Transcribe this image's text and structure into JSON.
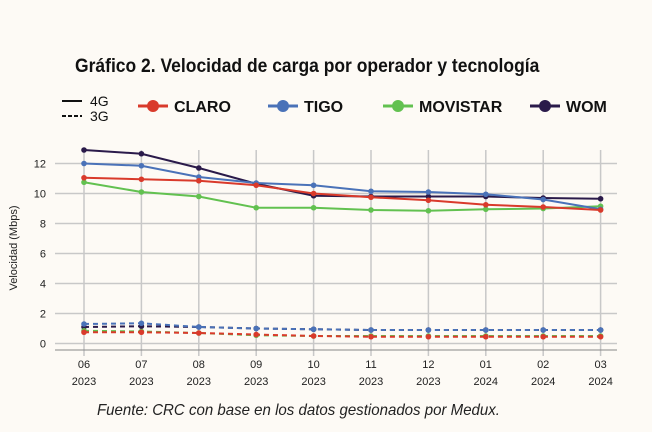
{
  "title": "Gráfico 2. Velocidad de carga por operador y tecnología",
  "source_label": "Fuente:",
  "source_text": " CRC con base en los datos gestionados por Medux.",
  "chart_data": {
    "type": "line",
    "title": "Gráfico 2. Velocidad de carga por operador y tecnología",
    "ylabel": "Velocidad (Mbps)",
    "xlabel": "",
    "ylim": [
      0,
      13
    ],
    "yticks": [
      0,
      2,
      4,
      6,
      8,
      10,
      12
    ],
    "grid": true,
    "legend_position": "top",
    "categories": [
      {
        "month": "06",
        "year": "2023"
      },
      {
        "month": "07",
        "year": "2023"
      },
      {
        "month": "08",
        "year": "2023"
      },
      {
        "month": "09",
        "year": "2023"
      },
      {
        "month": "10",
        "year": "2023"
      },
      {
        "month": "11",
        "year": "2023"
      },
      {
        "month": "12",
        "year": "2023"
      },
      {
        "month": "01",
        "year": "2024"
      },
      {
        "month": "02",
        "year": "2024"
      },
      {
        "month": "03",
        "year": "2024"
      }
    ],
    "technology_legend": [
      {
        "label": "4G",
        "style": "solid"
      },
      {
        "label": "3G",
        "style": "dashed"
      }
    ],
    "operators": [
      {
        "name": "CLARO",
        "color": "#d93a2b"
      },
      {
        "name": "TIGO",
        "color": "#4a72b8"
      },
      {
        "name": "MOVISTAR",
        "color": "#62c150"
      },
      {
        "name": "WOM",
        "color": "#2a1a4a"
      }
    ],
    "series": [
      {
        "operator": "CLARO",
        "tech": "4G",
        "values": [
          11.05,
          10.95,
          10.85,
          10.55,
          10.0,
          9.75,
          9.55,
          9.25,
          9.1,
          8.9
        ]
      },
      {
        "operator": "TIGO",
        "tech": "4G",
        "values": [
          12.0,
          11.85,
          11.1,
          10.7,
          10.55,
          10.15,
          10.1,
          9.95,
          9.6,
          8.95
        ]
      },
      {
        "operator": "MOVISTAR",
        "tech": "4G",
        "values": [
          10.75,
          10.1,
          9.8,
          9.05,
          9.05,
          8.9,
          8.85,
          8.95,
          9.0,
          9.15
        ]
      },
      {
        "operator": "WOM",
        "tech": "4G",
        "values": [
          12.9,
          12.65,
          11.7,
          10.65,
          9.85,
          9.8,
          9.8,
          9.8,
          9.7,
          9.65
        ]
      },
      {
        "operator": "CLARO",
        "tech": "3G",
        "values": [
          0.75,
          0.75,
          0.7,
          0.6,
          0.5,
          0.45,
          0.45,
          0.45,
          0.45,
          0.45
        ]
      },
      {
        "operator": "TIGO",
        "tech": "3G",
        "values": [
          1.3,
          1.35,
          1.1,
          1.0,
          0.95,
          0.9,
          0.9,
          0.9,
          0.9,
          0.9
        ]
      },
      {
        "operator": "MOVISTAR",
        "tech": "3G",
        "values": [
          0.85,
          0.8,
          0.7,
          0.55,
          0.5,
          0.5,
          0.5,
          0.5,
          0.5,
          0.5
        ]
      },
      {
        "operator": "WOM",
        "tech": "3G",
        "values": [
          1.1,
          1.15,
          1.1,
          1.0,
          0.95,
          0.9,
          0.9,
          0.9,
          0.9,
          0.9
        ]
      }
    ]
  }
}
